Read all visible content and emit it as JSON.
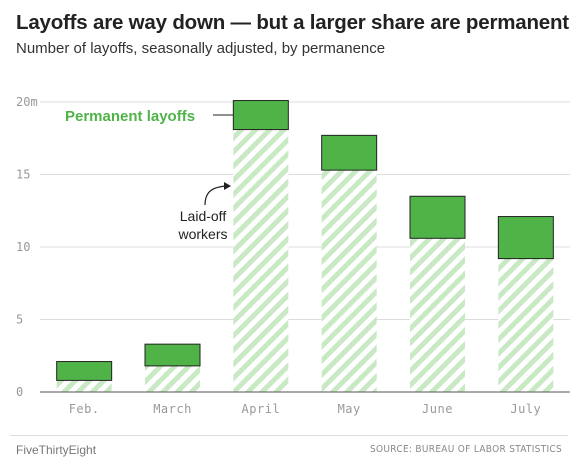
{
  "title": "Layoffs are way down — but a larger share are permanent",
  "subtitle": "Number of layoffs, seasonally adjusted, by permanence",
  "footer": {
    "brand": "FiveThirtyEight",
    "source": "SOURCE: BUREAU OF LABOR STATISTICS"
  },
  "colors": {
    "permanent": "#4fb348",
    "laid_off_hatch": "#c9e9c4",
    "bar_outline": "#222222",
    "grid": "#dddddd",
    "axis_text": "#999999",
    "annotation_text": "#4fb348"
  },
  "chart_data": {
    "type": "bar",
    "stacked": true,
    "categories": [
      "Feb.",
      "March",
      "April",
      "May",
      "June",
      "July"
    ],
    "series": [
      {
        "name": "Laid-off workers",
        "values": [
          0.8,
          1.8,
          18.1,
          15.3,
          10.6,
          9.2
        ]
      },
      {
        "name": "Permanent layoffs",
        "values": [
          1.3,
          1.5,
          2.0,
          2.4,
          2.9,
          2.9
        ]
      }
    ],
    "ylim": [
      0,
      20
    ],
    "yticks": [
      0,
      5,
      10,
      15,
      20
    ],
    "ytick_labels": [
      "0",
      "5",
      "10",
      "15",
      "20m"
    ],
    "grid": true,
    "annotations": [
      {
        "text": "Permanent layoffs",
        "target": "April",
        "series": "Permanent layoffs"
      },
      {
        "text_lines": [
          "Laid-off",
          "workers"
        ],
        "target": "April",
        "series": "Laid-off workers"
      }
    ]
  }
}
